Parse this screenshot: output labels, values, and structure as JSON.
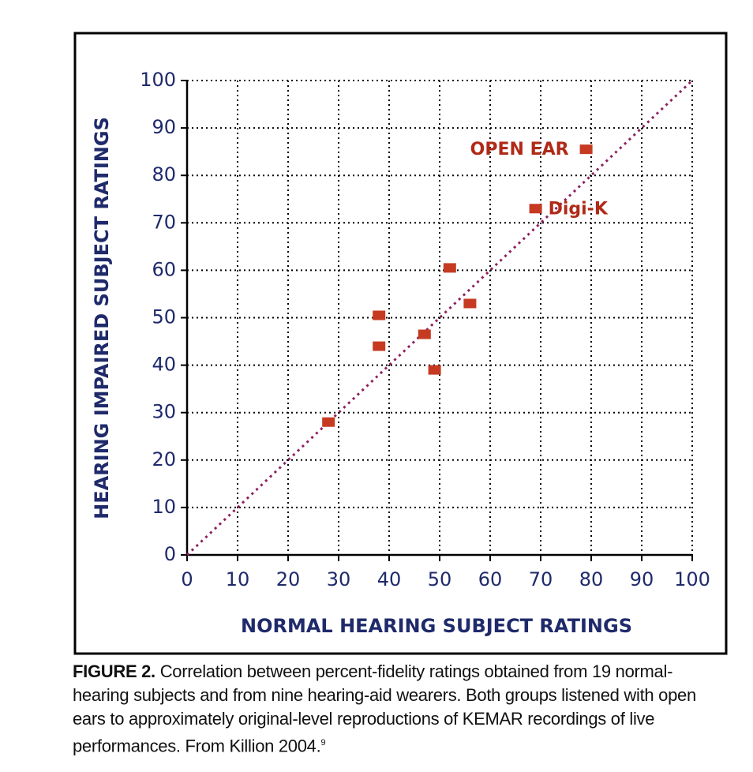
{
  "chart_data": {
    "type": "scatter",
    "xlabel": "NORMAL HEARING SUBJECT RATINGS",
    "ylabel": "HEARING IMPAIRED SUBJECT RATINGS",
    "x": [
      28,
      38,
      38,
      47,
      49,
      52,
      56,
      69,
      79
    ],
    "values": [
      28,
      50.5,
      44,
      46.5,
      39,
      60.5,
      53,
      73,
      85.5
    ],
    "point_labels": [
      null,
      null,
      null,
      null,
      null,
      null,
      null,
      "Digi-K",
      "OPEN EAR"
    ],
    "color": "#c63a22",
    "diagonal_color": "#8e1f5e",
    "xlim": [
      0,
      100
    ],
    "ylim": [
      0,
      100
    ],
    "xticks": [
      0,
      10,
      20,
      30,
      40,
      50,
      60,
      70,
      80,
      90,
      100
    ],
    "yticks": [
      0,
      10,
      20,
      30,
      40,
      50,
      60,
      70,
      80,
      90,
      100
    ],
    "grid": true
  },
  "caption": {
    "label": "FIGURE 2.",
    "text": "Correlation between percent-fidelity ratings obtained from 19 normal-hearing subjects and from nine hearing-aid wearers. Both groups listened with open ears to approximately original-level reproductions of KEMAR recordings of live performances. From Killion 2004.",
    "footnote": "9"
  }
}
